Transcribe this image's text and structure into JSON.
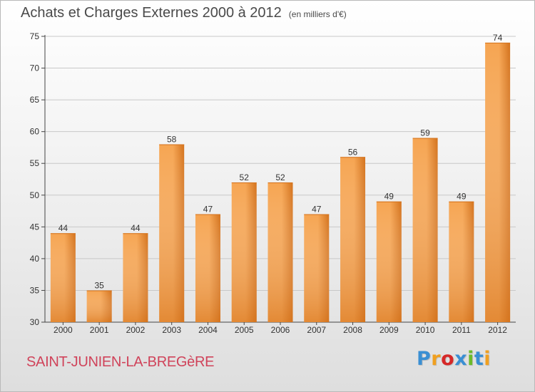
{
  "title": "Achats et Charges Externes 2000 à 2012",
  "unit_label": "(en milliers d'€)",
  "commune": "SAINT-JUNIEN-LA-BREGèRE",
  "logo": {
    "text": "Proxiti",
    "letters": [
      "P",
      "r",
      "o",
      "x",
      "i",
      "t",
      "i"
    ],
    "colors": [
      "#3a8fd3",
      "#f0a020",
      "#d62828",
      "#3a8fd3",
      "#6cbb2a",
      "#3a8fd3",
      "#f0a020"
    ]
  },
  "colors": {
    "bar_light": "#f6a552",
    "bar_dark": "#d4731d",
    "axis": "#444444",
    "grid": "#c8c8c8",
    "text": "#333333"
  },
  "chart_data": {
    "type": "bar",
    "categories": [
      "2000",
      "2001",
      "2002",
      "2003",
      "2004",
      "2005",
      "2006",
      "2007",
      "2008",
      "2009",
      "2010",
      "2011",
      "2012"
    ],
    "values": [
      44,
      35,
      44,
      58,
      47,
      52,
      52,
      47,
      56,
      49,
      59,
      49,
      74
    ],
    "ylim": [
      30,
      75
    ],
    "yticks": [
      30,
      35,
      40,
      45,
      50,
      55,
      60,
      65,
      70,
      75
    ],
    "grid": true
  }
}
